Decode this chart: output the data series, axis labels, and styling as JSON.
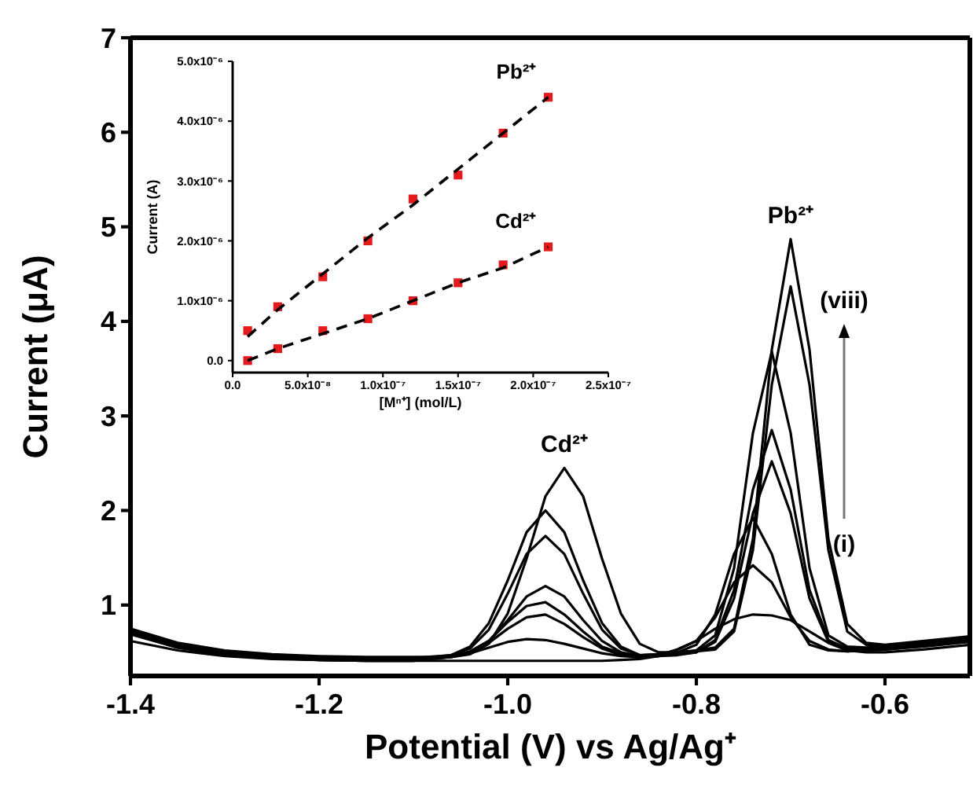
{
  "chart_data": [
    {
      "type": "line",
      "xlabel": "Potential (V) vs Ag/Ag⁺",
      "ylabel": "Current (μA)",
      "xlim": [
        -1.4,
        -0.51
      ],
      "ylim": [
        0.25,
        7
      ],
      "xticks": [
        -1.4,
        -1.2,
        {
          "value": -1,
          "label": "-1.0"
        },
        -0.8,
        -0.6
      ],
      "yticks": [
        1,
        2,
        3,
        4,
        5,
        6,
        7
      ],
      "grid": false,
      "marker": "none",
      "line_style": "solid",
      "x": [
        -1.4,
        -1.35,
        -1.3,
        -1.25,
        -1.2,
        -1.15,
        -1.1,
        -1.06,
        -1.04,
        -1.02,
        -1.0,
        -0.98,
        -0.96,
        -0.94,
        -0.92,
        -0.9,
        -0.88,
        -0.86,
        -0.84,
        -0.82,
        -0.8,
        -0.78,
        -0.76,
        -0.74,
        -0.72,
        -0.7,
        -0.68,
        -0.66,
        -0.64,
        -0.62,
        -0.6,
        -0.56,
        -0.51
      ],
      "series": [
        {
          "color": "#000000",
          "values": [
            0.62,
            0.52,
            0.46,
            0.43,
            0.42,
            0.41,
            0.41,
            0.41,
            0.41,
            0.41,
            0.41,
            0.41,
            0.41,
            0.41,
            0.41,
            0.41,
            0.42,
            0.43,
            0.46,
            0.53,
            0.62,
            0.75,
            0.85,
            0.9,
            0.89,
            0.84,
            0.72,
            0.6,
            0.52,
            0.5,
            0.5,
            0.53,
            0.58
          ]
        },
        {
          "color": "#000000",
          "values": [
            0.69,
            0.55,
            0.47,
            0.44,
            0.42,
            0.41,
            0.41,
            0.45,
            0.49,
            0.55,
            0.61,
            0.64,
            0.63,
            0.59,
            0.54,
            0.49,
            0.46,
            0.45,
            0.47,
            0.53,
            0.62,
            0.87,
            1.24,
            1.42,
            1.24,
            0.87,
            0.62,
            0.53,
            0.51,
            0.52,
            0.53,
            0.56,
            0.61
          ]
        },
        {
          "color": "#000000",
          "values": [
            0.7,
            0.55,
            0.48,
            0.44,
            0.42,
            0.41,
            0.41,
            0.45,
            0.5,
            0.6,
            0.75,
            0.87,
            0.9,
            0.8,
            0.66,
            0.54,
            0.47,
            0.45,
            0.46,
            0.5,
            0.58,
            0.9,
            1.54,
            1.92,
            1.54,
            0.9,
            0.58,
            0.52,
            0.51,
            0.52,
            0.53,
            0.57,
            0.62
          ]
        },
        {
          "color": "#000000",
          "values": [
            0.71,
            0.56,
            0.48,
            0.45,
            0.43,
            0.42,
            0.42,
            0.46,
            0.51,
            0.62,
            0.82,
            0.99,
            1.03,
            0.9,
            0.72,
            0.56,
            0.49,
            0.46,
            0.46,
            0.47,
            0.5,
            0.61,
            1.07,
            1.97,
            2.52,
            1.97,
            1.07,
            0.61,
            0.53,
            0.53,
            0.54,
            0.58,
            0.63
          ]
        },
        {
          "color": "#000000",
          "values": [
            0.72,
            0.57,
            0.49,
            0.45,
            0.43,
            0.42,
            0.42,
            0.46,
            0.5,
            0.62,
            0.84,
            1.09,
            1.2,
            1.09,
            0.84,
            0.62,
            0.5,
            0.46,
            0.47,
            0.48,
            0.5,
            0.63,
            1.16,
            2.22,
            2.85,
            2.22,
            1.16,
            0.63,
            0.54,
            0.54,
            0.55,
            0.59,
            0.64
          ]
        },
        {
          "color": "#000000",
          "values": [
            0.73,
            0.58,
            0.5,
            0.46,
            0.44,
            0.43,
            0.43,
            0.47,
            0.54,
            0.74,
            1.12,
            1.54,
            1.73,
            1.54,
            1.12,
            0.74,
            0.54,
            0.47,
            0.48,
            0.49,
            0.52,
            0.68,
            1.39,
            2.82,
            3.68,
            2.82,
            1.39,
            0.68,
            0.56,
            0.55,
            0.56,
            0.6,
            0.65
          ]
        },
        {
          "color": "#000000",
          "values": [
            0.74,
            0.59,
            0.51,
            0.47,
            0.45,
            0.44,
            0.44,
            0.47,
            0.56,
            0.81,
            1.26,
            1.77,
            2.0,
            1.77,
            1.26,
            0.81,
            0.56,
            0.47,
            0.48,
            0.5,
            0.51,
            0.53,
            0.72,
            1.58,
            3.33,
            4.37,
            3.33,
            1.58,
            0.72,
            0.58,
            0.57,
            0.61,
            0.66
          ]
        },
        {
          "color": "#000000",
          "values": [
            0.75,
            0.6,
            0.52,
            0.48,
            0.46,
            0.45,
            0.45,
            0.45,
            0.48,
            0.59,
            0.91,
            1.49,
            2.15,
            2.45,
            2.15,
            1.49,
            0.91,
            0.59,
            0.5,
            0.5,
            0.52,
            0.55,
            0.75,
            1.7,
            3.7,
            4.87,
            3.7,
            1.7,
            0.8,
            0.6,
            0.58,
            0.62,
            0.67
          ]
        }
      ],
      "annotations": [
        {
          "text": "Cd²⁺",
          "x": -0.94,
          "y": 2.45
        },
        {
          "text": "Pb²⁺",
          "x": -0.7,
          "y": 4.87
        },
        "(viii)",
        "(i)"
      ]
    },
    {
      "type": "scatter",
      "xlabel": "[Mⁿ⁺] (mol/L)",
      "ylabel": "Current (A)",
      "xlim": [
        0,
        2.5e-07
      ],
      "ylim": [
        -2e-07,
        5e-06
      ],
      "xticks": [
        {
          "value": 0,
          "label": "0.0"
        },
        {
          "value": 5e-08,
          "label": "5.0x10⁻⁸"
        },
        {
          "value": 1e-07,
          "label": "1.0x10⁻⁷"
        },
        {
          "value": 1.5e-07,
          "label": "1.5x10⁻⁷"
        },
        {
          "value": 2e-07,
          "label": "2.0x10⁻⁷"
        },
        {
          "value": 2.5e-07,
          "label": "2.5x10⁻⁷"
        }
      ],
      "yticks": [
        {
          "value": 0,
          "label": "0.0"
        },
        {
          "value": 1e-06,
          "label": "1.0x10⁻⁶"
        },
        {
          "value": 2e-06,
          "label": "2.0x10⁻⁶"
        },
        {
          "value": 3e-06,
          "label": "3.0x10⁻⁶"
        },
        {
          "value": 4e-06,
          "label": "4.0x10⁻⁶"
        },
        {
          "value": 5e-06,
          "label": "5.0x10⁻⁶"
        }
      ],
      "grid": false,
      "marker": "square",
      "x": [
        1e-08,
        3e-08,
        6e-08,
        9e-08,
        1.2e-07,
        1.5e-07,
        1.8e-07,
        2.1e-07
      ],
      "series": [
        {
          "name": "Pb²⁺",
          "color": "#e41a1c",
          "values": [
            5e-07,
            9e-07,
            1.4e-06,
            2e-06,
            2.7e-06,
            3.1e-06,
            3.8e-06,
            4.4e-06
          ]
        },
        {
          "name": "Cd²⁺",
          "color": "#e41a1c",
          "values": [
            0,
            2e-07,
            5e-07,
            7e-07,
            1e-06,
            1.3e-06,
            1.6e-06,
            1.9e-06
          ]
        },
        {
          "type": "line",
          "line_style": "dashed",
          "marker": "none",
          "color": "#000000",
          "values": [
            4e-07,
            8.5e-07,
            1.45e-06,
            2.05e-06,
            2.6e-06,
            3.2e-06,
            3.8e-06,
            4.4e-06
          ]
        },
        {
          "type": "line",
          "line_style": "dashed",
          "marker": "none",
          "color": "#000000",
          "values": [
            0,
            2e-07,
            4.5e-07,
            7e-07,
            1e-06,
            1.3e-06,
            1.55e-06,
            1.9e-06
          ]
        }
      ]
    }
  ]
}
